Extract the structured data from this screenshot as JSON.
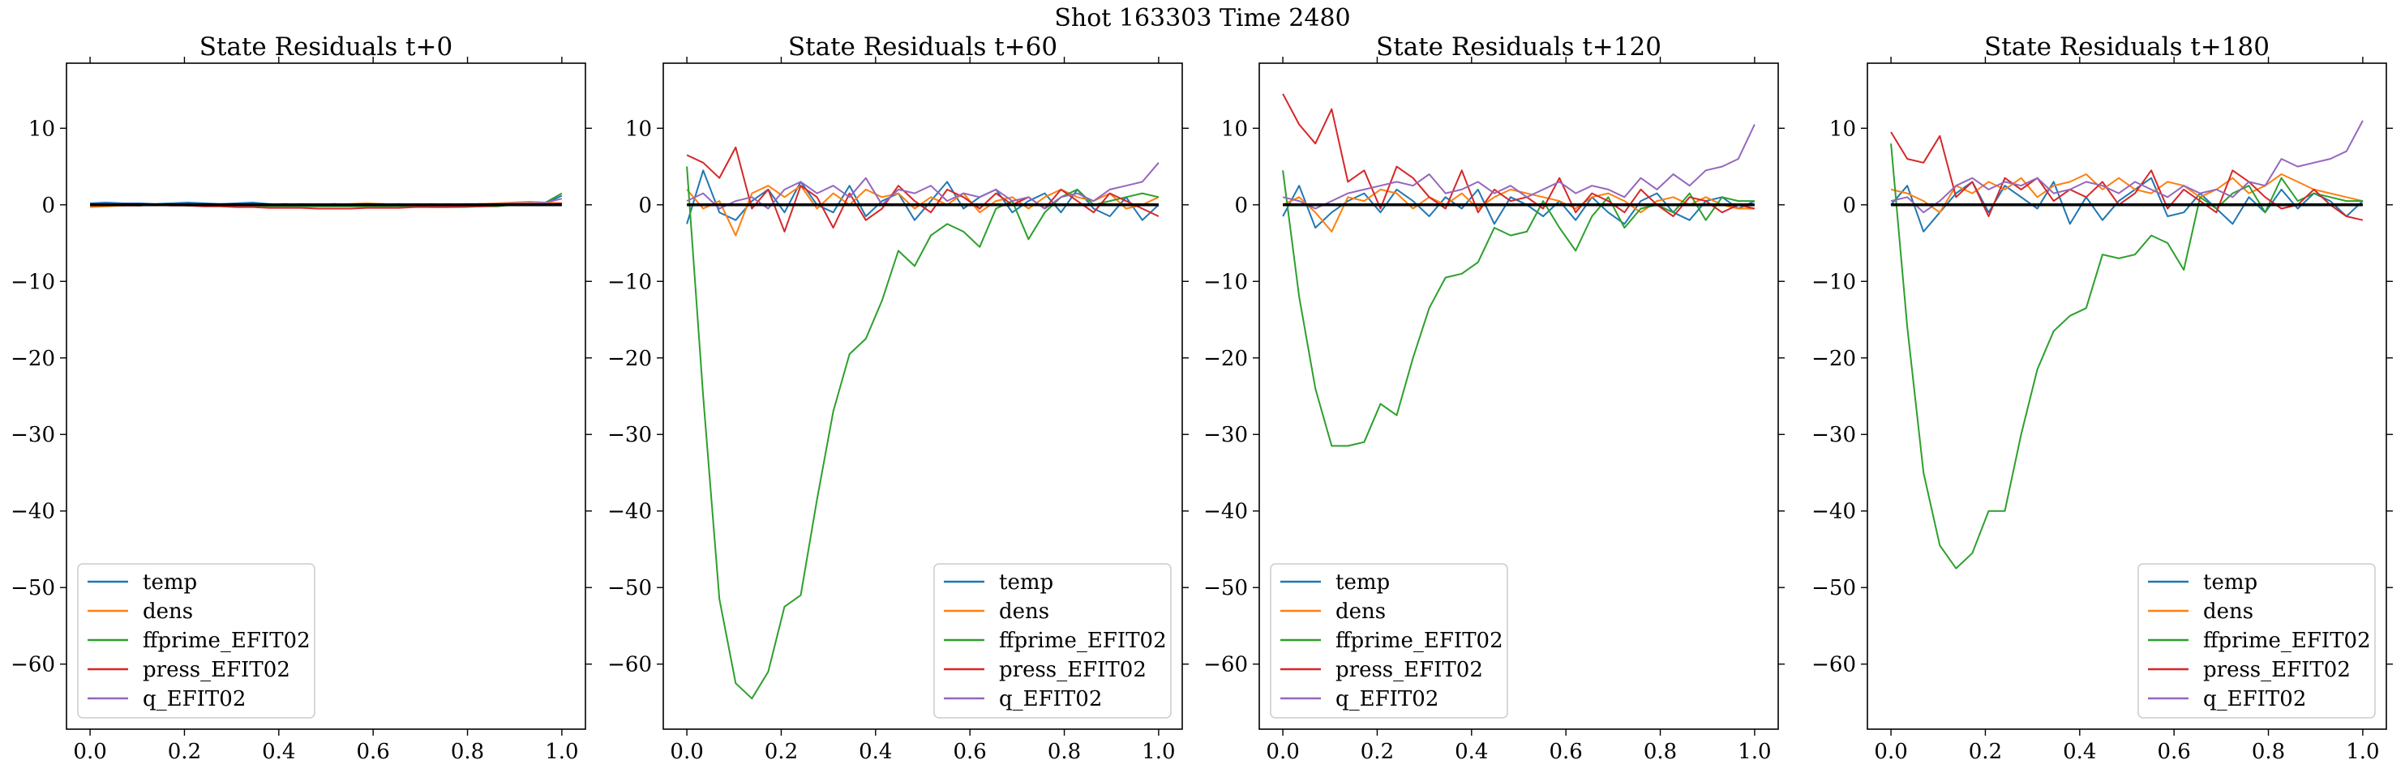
{
  "figure": {
    "suptitle": "Shot 163303   Time 2480"
  },
  "colors": {
    "temp": "#1f77b4",
    "dens": "#ff7f0e",
    "ffprime_EFIT02": "#2ca02c",
    "press_EFIT02": "#d62728",
    "q_EFIT02": "#9467bd",
    "zero_line": "#000000"
  },
  "chart_data": [
    {
      "type": "line",
      "title": "State Residuals t+0",
      "xlabel": "",
      "ylabel": "",
      "xlim": [
        -0.05,
        1.05
      ],
      "ylim": [
        -68.5,
        18.5
      ],
      "xticks": [
        0.0,
        0.2,
        0.4,
        0.6,
        0.8,
        1.0
      ],
      "xtick_labels": [
        "0.0",
        "0.2",
        "0.4",
        "0.6",
        "0.8",
        "1.0"
      ],
      "yticks": [
        10,
        0,
        -10,
        -20,
        -30,
        -40,
        -50,
        -60
      ],
      "ytick_labels": [
        "10",
        "0",
        "−10",
        "−20",
        "−30",
        "−40",
        "−50",
        "−60"
      ],
      "legend_placement": "lower-left",
      "grid": false,
      "x": [
        0.0,
        0.0345,
        0.069,
        0.1034,
        0.1379,
        0.1724,
        0.2069,
        0.2414,
        0.2759,
        0.3103,
        0.3448,
        0.3793,
        0.4138,
        0.4483,
        0.4828,
        0.5172,
        0.5517,
        0.5862,
        0.6207,
        0.6552,
        0.6897,
        0.7241,
        0.7586,
        0.7931,
        0.8276,
        0.8621,
        0.8966,
        0.931,
        0.9655,
        1.0
      ],
      "series": [
        {
          "name": "temp",
          "values": [
            0.2,
            0.3,
            0.2,
            0.2,
            0.1,
            0.2,
            0.3,
            0.2,
            0.1,
            0.2,
            0.3,
            0.1,
            0.0,
            0.1,
            0.0,
            0.1,
            0.0,
            -0.1,
            0.0,
            0.1,
            0.0,
            -0.1,
            0.0,
            0.0,
            0.1,
            0.0,
            0.1,
            0.2,
            0.2,
            1.2
          ]
        },
        {
          "name": "dens",
          "values": [
            -0.3,
            -0.2,
            -0.1,
            0.0,
            0.1,
            0.0,
            -0.1,
            0.0,
            0.1,
            0.0,
            -0.1,
            0.0,
            0.1,
            0.0,
            -0.1,
            0.0,
            0.1,
            0.2,
            0.1,
            0.0,
            0.1,
            0.0,
            0.1,
            0.0,
            0.1,
            0.2,
            0.3,
            0.4,
            0.3,
            0.2
          ]
        },
        {
          "name": "ffprime_EFIT02",
          "values": [
            0.0,
            0.0,
            0.0,
            -0.1,
            0.0,
            0.0,
            -0.1,
            -0.1,
            0.0,
            -0.1,
            -0.1,
            -0.2,
            -0.2,
            -0.2,
            -0.2,
            -0.2,
            -0.2,
            -0.2,
            -0.2,
            -0.2,
            -0.2,
            -0.3,
            -0.3,
            -0.3,
            -0.2,
            -0.2,
            0.0,
            0.2,
            0.3,
            1.5
          ]
        },
        {
          "name": "press_EFIT02",
          "values": [
            0.0,
            0.0,
            -0.1,
            -0.1,
            0.0,
            -0.1,
            -0.1,
            -0.2,
            -0.2,
            -0.3,
            -0.3,
            -0.4,
            -0.4,
            -0.4,
            -0.5,
            -0.5,
            -0.5,
            -0.4,
            -0.4,
            -0.4,
            -0.3,
            -0.3,
            -0.3,
            -0.2,
            -0.2,
            -0.1,
            0.0,
            0.0,
            0.1,
            0.2
          ]
        },
        {
          "name": "q_EFIT02",
          "values": [
            0.1,
            0.1,
            0.1,
            0.1,
            0.0,
            0.1,
            0.1,
            0.0,
            0.1,
            0.1,
            0.0,
            0.0,
            0.1,
            0.0,
            0.0,
            0.1,
            0.0,
            0.0,
            0.1,
            0.0,
            0.0,
            0.1,
            0.0,
            0.1,
            0.1,
            0.1,
            0.2,
            0.2,
            0.3,
            0.8
          ]
        }
      ]
    },
    {
      "type": "line",
      "title": "State Residuals t+60",
      "xlabel": "",
      "ylabel": "",
      "xlim": [
        -0.05,
        1.05
      ],
      "ylim": [
        -68.5,
        18.5
      ],
      "xticks": [
        0.0,
        0.2,
        0.4,
        0.6,
        0.8,
        1.0
      ],
      "xtick_labels": [
        "0.0",
        "0.2",
        "0.4",
        "0.6",
        "0.8",
        "1.0"
      ],
      "yticks": [
        10,
        0,
        -10,
        -20,
        -30,
        -40,
        -50,
        -60
      ],
      "ytick_labels": [
        "10",
        "0",
        "−10",
        "−20",
        "−30",
        "−40",
        "−50",
        "−60"
      ],
      "legend_placement": "lower-right",
      "grid": false,
      "x": [
        0.0,
        0.0345,
        0.069,
        0.1034,
        0.1379,
        0.1724,
        0.2069,
        0.2414,
        0.2759,
        0.3103,
        0.3448,
        0.3793,
        0.4138,
        0.4483,
        0.4828,
        0.5172,
        0.5517,
        0.5862,
        0.6207,
        0.6552,
        0.6897,
        0.7241,
        0.7586,
        0.7931,
        0.8276,
        0.8621,
        0.8966,
        0.931,
        0.9655,
        1.0
      ],
      "series": [
        {
          "name": "temp",
          "values": [
            -2.5,
            4.5,
            -1.0,
            -2.0,
            0.5,
            2.0,
            -1.0,
            3.0,
            0.0,
            -1.0,
            2.5,
            -1.5,
            0.5,
            1.5,
            -2.0,
            0.5,
            3.0,
            -0.5,
            1.0,
            2.0,
            -1.0,
            0.5,
            1.5,
            -1.0,
            2.0,
            -0.5,
            -1.5,
            1.0,
            -2.0,
            0.0
          ]
        },
        {
          "name": "dens",
          "values": [
            2.0,
            -0.5,
            0.5,
            -4.0,
            1.5,
            2.5,
            1.0,
            2.5,
            -0.5,
            1.5,
            0.0,
            2.0,
            1.0,
            1.5,
            -0.5,
            1.0,
            0.0,
            1.5,
            -1.0,
            0.5,
            1.0,
            -0.5,
            1.0,
            2.0,
            1.0,
            0.5,
            1.5,
            -0.5,
            0.0,
            1.0
          ]
        },
        {
          "name": "ffprime_EFIT02",
          "values": [
            5.0,
            -25.0,
            -51.5,
            -62.5,
            -64.5,
            -61.0,
            -52.5,
            -51.0,
            -38.5,
            -27.0,
            -19.5,
            -17.5,
            -12.5,
            -6.0,
            -8.0,
            -4.0,
            -2.5,
            -3.5,
            -5.5,
            -0.5,
            0.5,
            -4.5,
            -1.0,
            1.0,
            2.0,
            0.0,
            0.5,
            1.0,
            1.5,
            1.0
          ]
        },
        {
          "name": "press_EFIT02",
          "values": [
            6.5,
            5.5,
            3.5,
            7.5,
            -0.5,
            2.0,
            -3.5,
            2.5,
            1.0,
            -3.0,
            1.5,
            -2.0,
            -0.5,
            2.5,
            0.5,
            -1.0,
            2.0,
            1.0,
            -0.5,
            1.5,
            0.0,
            1.0,
            -0.5,
            2.0,
            0.5,
            -1.0,
            1.5,
            0.5,
            -0.5,
            -1.5
          ]
        },
        {
          "name": "q_EFIT02",
          "values": [
            0.5,
            1.5,
            -0.5,
            0.5,
            1.0,
            -0.5,
            2.0,
            3.0,
            1.5,
            2.5,
            1.0,
            3.5,
            0.0,
            2.0,
            1.5,
            2.5,
            0.5,
            1.5,
            1.0,
            2.0,
            0.5,
            1.0,
            -0.5,
            1.0,
            1.5,
            0.5,
            2.0,
            2.5,
            3.0,
            5.5
          ]
        }
      ]
    },
    {
      "type": "line",
      "title": "State Residuals t+120",
      "xlabel": "",
      "ylabel": "",
      "xlim": [
        -0.05,
        1.05
      ],
      "ylim": [
        -68.5,
        18.5
      ],
      "xticks": [
        0.0,
        0.2,
        0.4,
        0.6,
        0.8,
        1.0
      ],
      "xtick_labels": [
        "0.0",
        "0.2",
        "0.4",
        "0.6",
        "0.8",
        "1.0"
      ],
      "yticks": [
        10,
        0,
        -10,
        -20,
        -30,
        -40,
        -50,
        -60
      ],
      "ytick_labels": [
        "10",
        "0",
        "−10",
        "−20",
        "−30",
        "−40",
        "−50",
        "−60"
      ],
      "legend_placement": "lower-left",
      "grid": false,
      "x": [
        0.0,
        0.0345,
        0.069,
        0.1034,
        0.1379,
        0.1724,
        0.2069,
        0.2414,
        0.2759,
        0.3103,
        0.3448,
        0.3793,
        0.4138,
        0.4483,
        0.4828,
        0.5172,
        0.5517,
        0.5862,
        0.6207,
        0.6552,
        0.6897,
        0.7241,
        0.7586,
        0.7931,
        0.8276,
        0.8621,
        0.8966,
        0.931,
        0.9655,
        1.0
      ],
      "series": [
        {
          "name": "temp",
          "values": [
            -1.5,
            2.5,
            -3.0,
            -1.0,
            0.5,
            1.5,
            -1.0,
            2.0,
            0.5,
            -1.5,
            1.0,
            -0.5,
            2.0,
            -2.5,
            1.0,
            0.0,
            -1.5,
            0.5,
            -2.0,
            1.0,
            -1.0,
            -2.5,
            0.5,
            1.5,
            -1.0,
            -2.0,
            0.5,
            1.0,
            -0.5,
            0.5
          ]
        },
        {
          "name": "dens",
          "values": [
            0.0,
            1.0,
            -1.0,
            -3.5,
            1.0,
            0.5,
            2.0,
            1.5,
            -0.5,
            1.0,
            0.0,
            1.5,
            -0.5,
            1.0,
            2.0,
            1.5,
            1.0,
            0.5,
            -0.5,
            1.0,
            1.5,
            0.5,
            -1.0,
            0.5,
            1.0,
            0.0,
            1.0,
            0.0,
            -0.5,
            -0.5
          ]
        },
        {
          "name": "ffprime_EFIT02",
          "values": [
            4.5,
            -12.0,
            -24.0,
            -31.5,
            -31.5,
            -31.0,
            -26.0,
            -27.5,
            -20.0,
            -13.5,
            -9.5,
            -9.0,
            -7.5,
            -3.0,
            -4.0,
            -3.5,
            0.5,
            -3.0,
            -6.0,
            -1.5,
            1.0,
            -3.0,
            -0.5,
            0.0,
            -1.0,
            1.5,
            -2.0,
            1.0,
            0.5,
            0.5
          ]
        },
        {
          "name": "press_EFIT02",
          "values": [
            14.5,
            10.5,
            8.0,
            12.5,
            3.0,
            4.5,
            -0.5,
            5.0,
            3.5,
            1.0,
            -0.5,
            4.5,
            -1.0,
            2.0,
            0.5,
            1.0,
            -0.5,
            3.5,
            -1.0,
            1.5,
            0.5,
            -1.0,
            2.0,
            0.0,
            -1.5,
            1.0,
            0.5,
            -1.0,
            0.0,
            -0.5
          ]
        },
        {
          "name": "q_EFIT02",
          "values": [
            1.0,
            0.5,
            -0.5,
            0.5,
            1.5,
            2.0,
            2.5,
            3.0,
            2.5,
            4.0,
            1.5,
            2.0,
            3.0,
            1.5,
            2.5,
            1.0,
            2.0,
            3.0,
            1.5,
            2.5,
            2.0,
            1.0,
            3.5,
            2.0,
            4.0,
            2.5,
            4.5,
            5.0,
            6.0,
            10.5
          ]
        }
      ]
    },
    {
      "type": "line",
      "title": "State Residuals t+180",
      "xlabel": "",
      "ylabel": "",
      "xlim": [
        -0.05,
        1.05
      ],
      "ylim": [
        -68.5,
        18.5
      ],
      "xticks": [
        0.0,
        0.2,
        0.4,
        0.6,
        0.8,
        1.0
      ],
      "xtick_labels": [
        "0.0",
        "0.2",
        "0.4",
        "0.6",
        "0.8",
        "1.0"
      ],
      "yticks": [
        10,
        0,
        -10,
        -20,
        -30,
        -40,
        -50,
        -60
      ],
      "ytick_labels": [
        "10",
        "0",
        "−10",
        "−20",
        "−30",
        "−40",
        "−50",
        "−60"
      ],
      "legend_placement": "lower-right",
      "grid": false,
      "x": [
        0.0,
        0.0345,
        0.069,
        0.1034,
        0.1379,
        0.1724,
        0.2069,
        0.2414,
        0.2759,
        0.3103,
        0.3448,
        0.3793,
        0.4138,
        0.4483,
        0.4828,
        0.5172,
        0.5517,
        0.5862,
        0.6207,
        0.6552,
        0.6897,
        0.7241,
        0.7586,
        0.7931,
        0.8276,
        0.8621,
        0.8966,
        0.931,
        0.9655,
        1.0
      ],
      "series": [
        {
          "name": "temp",
          "values": [
            0.0,
            2.5,
            -3.5,
            -1.0,
            1.5,
            3.0,
            -1.0,
            2.5,
            1.0,
            -0.5,
            3.0,
            -2.5,
            1.0,
            -2.0,
            0.5,
            2.0,
            3.5,
            -1.5,
            -1.0,
            1.5,
            -0.5,
            -2.5,
            1.0,
            -1.0,
            2.0,
            -0.5,
            1.5,
            0.5,
            -1.5,
            0.5
          ]
        },
        {
          "name": "dens",
          "values": [
            2.0,
            1.5,
            0.5,
            -1.0,
            2.5,
            1.5,
            3.0,
            2.0,
            3.5,
            1.0,
            2.5,
            3.0,
            4.0,
            2.0,
            3.5,
            2.0,
            1.5,
            3.0,
            2.5,
            1.0,
            2.0,
            3.5,
            1.5,
            2.5,
            4.0,
            3.0,
            2.0,
            1.5,
            1.0,
            0.5
          ]
        },
        {
          "name": "ffprime_EFIT02",
          "values": [
            8.0,
            -16.0,
            -35.0,
            -44.5,
            -47.5,
            -45.5,
            -40.0,
            -40.0,
            -30.0,
            -21.5,
            -16.5,
            -14.5,
            -13.5,
            -6.5,
            -7.0,
            -6.5,
            -4.0,
            -5.0,
            -8.5,
            1.0,
            -0.5,
            1.5,
            2.5,
            -1.0,
            3.5,
            0.5,
            1.5,
            1.0,
            0.5,
            0.5
          ]
        },
        {
          "name": "press_EFIT02",
          "values": [
            9.5,
            6.0,
            5.5,
            9.0,
            1.0,
            3.0,
            -1.5,
            3.5,
            2.0,
            3.5,
            0.5,
            2.0,
            1.0,
            3.0,
            0.0,
            1.5,
            4.5,
            -0.5,
            2.0,
            0.5,
            -1.0,
            4.5,
            3.0,
            1.0,
            -0.5,
            0.0,
            2.0,
            0.0,
            -1.5,
            -2.0
          ]
        },
        {
          "name": "q_EFIT02",
          "values": [
            0.5,
            1.0,
            -1.0,
            0.5,
            2.5,
            3.5,
            2.0,
            3.0,
            2.5,
            3.5,
            1.5,
            2.0,
            3.0,
            2.5,
            1.5,
            3.0,
            2.0,
            1.0,
            2.5,
            1.5,
            2.0,
            1.0,
            3.0,
            2.5,
            6.0,
            5.0,
            5.5,
            6.0,
            7.0,
            11.0
          ]
        }
      ]
    }
  ]
}
